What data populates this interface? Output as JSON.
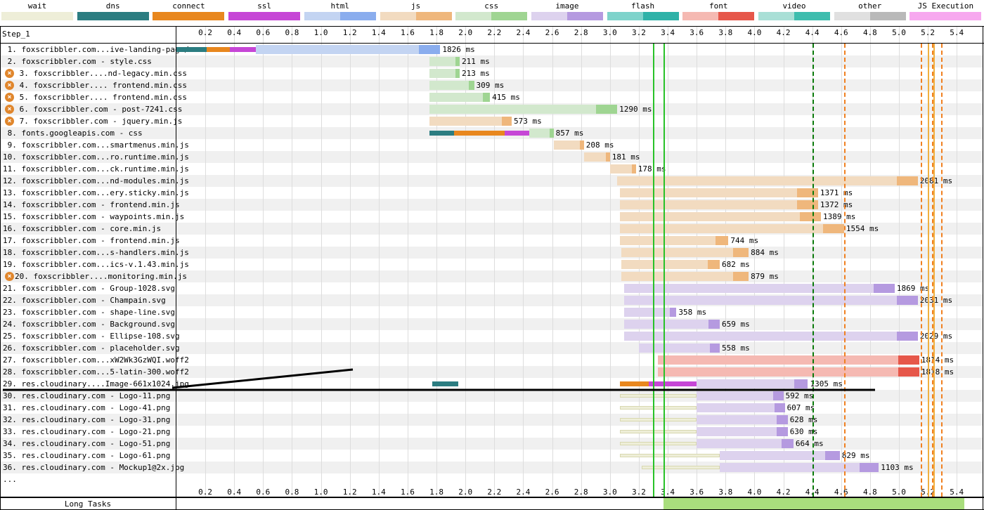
{
  "legend": [
    {
      "label": "wait",
      "c1": "#eeeed8",
      "c2": "#eeeed8"
    },
    {
      "label": "dns",
      "c1": "#2c7d81",
      "c2": "#2c7d81"
    },
    {
      "label": "connect",
      "c1": "#e8871e",
      "c2": "#e8871e"
    },
    {
      "label": "ssl",
      "c1": "#c646d6",
      "c2": "#c646d6"
    },
    {
      "label": "html",
      "c1": "#c3d4f2",
      "c2": "#8aadee"
    },
    {
      "label": "js",
      "c1": "#f2dbc0",
      "c2": "#efb77c"
    },
    {
      "label": "css",
      "c1": "#d2e8cd",
      "c2": "#9fd592"
    },
    {
      "label": "image",
      "c1": "#ddd2ee",
      "c2": "#b59ae0"
    },
    {
      "label": "flash",
      "c1": "#7ed3cb",
      "c2": "#2fb2a8"
    },
    {
      "label": "font",
      "c1": "#f5b9b2",
      "c2": "#e6574a"
    },
    {
      "label": "video",
      "c1": "#a9dfd6",
      "c2": "#3ebdae"
    },
    {
      "label": "other",
      "c1": "#e0e0e0",
      "c2": "#b9b9b9"
    },
    {
      "label": "JS Execution",
      "c1": "#f7a8ef",
      "c2": "#f7a8ef"
    }
  ],
  "step_label": "Step_1",
  "long_tasks_label": "Long Tasks",
  "more_label": "...",
  "ticks": [
    "0.2",
    "0.4",
    "0.6",
    "0.8",
    "1.0",
    "1.2",
    "1.4",
    "1.6",
    "1.8",
    "2.0",
    "2.2",
    "2.4",
    "2.6",
    "2.8",
    "3.0",
    "3.2",
    "3.4",
    "3.6",
    "3.8",
    "4.0",
    "4.2",
    "4.4",
    "4.6",
    "4.8",
    "5.0",
    "5.2",
    "5.4"
  ],
  "rows": [
    {
      "label": " 1. foxscribbler.com...ive-landing-page/",
      "err": false,
      "type": "html",
      "start": 0.0,
      "end": 1.826,
      "dns": [
        0.0,
        0.21
      ],
      "connect": [
        0.21,
        0.37
      ],
      "ssl": [
        0.37,
        0.55
      ],
      "dur": "1826 ms"
    },
    {
      "label": " 2. foxscribbler.com - style.css",
      "err": false,
      "type": "css",
      "start": 1.75,
      "end": 1.96,
      "dur": "211 ms"
    },
    {
      "label": " 3. foxscribbler....nd-legacy.min.css",
      "err": true,
      "type": "css",
      "start": 1.75,
      "end": 1.96,
      "dur": "213 ms"
    },
    {
      "label": " 4. foxscribbler.... frontend.min.css",
      "err": true,
      "type": "css",
      "start": 1.75,
      "end": 2.06,
      "dur": "309 ms"
    },
    {
      "label": " 5. foxscribbler.... frontend.min.css",
      "err": true,
      "type": "css",
      "start": 1.75,
      "end": 2.17,
      "dur": "415 ms"
    },
    {
      "label": " 6. foxscribbler.com - post-7241.css",
      "err": true,
      "type": "css",
      "start": 1.75,
      "end": 3.05,
      "dur": "1290 ms"
    },
    {
      "label": " 7. foxscribbler.com - jquery.min.js",
      "err": true,
      "type": "js",
      "start": 1.75,
      "end": 2.32,
      "dur": "573 ms"
    },
    {
      "label": " 8. fonts.googleapis.com - css",
      "err": false,
      "type": "css",
      "start": 1.75,
      "end": 2.61,
      "dns": [
        1.75,
        1.92
      ],
      "connect": [
        1.92,
        2.27
      ],
      "ssl": [
        2.27,
        2.44
      ],
      "dur": "857 ms"
    },
    {
      "label": " 9. foxscribbler.com...smartmenus.min.js",
      "err": false,
      "type": "js",
      "start": 2.61,
      "end": 2.82,
      "dur": "208 ms"
    },
    {
      "label": "10. foxscribbler.com...ro.runtime.min.js",
      "err": false,
      "type": "js",
      "start": 2.82,
      "end": 3.0,
      "dur": "181 ms"
    },
    {
      "label": "11. foxscribbler.com...ck.runtime.min.js",
      "err": false,
      "type": "js",
      "start": 3.0,
      "end": 3.18,
      "dur": "178 ms"
    },
    {
      "label": "12. foxscribbler.com...nd-modules.min.js",
      "err": false,
      "type": "js",
      "start": 3.05,
      "end": 5.13,
      "dur": "2081 ms"
    },
    {
      "label": "13. foxscribbler.com...ery.sticky.min.js",
      "err": false,
      "type": "js",
      "start": 3.07,
      "end": 4.44,
      "dur": "1371 ms"
    },
    {
      "label": "14. foxscribbler.com - frontend.min.js",
      "err": false,
      "type": "js",
      "start": 3.07,
      "end": 4.44,
      "dur": "1372 ms"
    },
    {
      "label": "15. foxscribbler.com - waypoints.min.js",
      "err": false,
      "type": "js",
      "start": 3.07,
      "end": 4.46,
      "dur": "1389 ms"
    },
    {
      "label": "16. foxscribbler.com - core.min.js",
      "err": false,
      "type": "js",
      "start": 3.07,
      "end": 4.62,
      "dur": "1554 ms"
    },
    {
      "label": "17. foxscribbler.com - frontend.min.js",
      "err": false,
      "type": "js",
      "start": 3.07,
      "end": 3.82,
      "dur": "744 ms"
    },
    {
      "label": "18. foxscribbler.com...s-handlers.min.js",
      "err": false,
      "type": "js",
      "start": 3.08,
      "end": 3.96,
      "dur": "884 ms"
    },
    {
      "label": "19. foxscribbler.com...ics-v.1.43.min.js",
      "err": false,
      "type": "js",
      "start": 3.08,
      "end": 3.76,
      "dur": "682 ms"
    },
    {
      "label": "20. foxscribbler....monitoring.min.js",
      "err": true,
      "type": "js",
      "start": 3.08,
      "end": 3.96,
      "dur": "879 ms"
    },
    {
      "label": "21. foxscribbler.com - Group-1028.svg",
      "err": false,
      "type": "image",
      "start": 3.1,
      "end": 4.97,
      "dur": "1869 ms"
    },
    {
      "label": "22. foxscribbler.com - Champain.svg",
      "err": false,
      "type": "image",
      "start": 3.1,
      "end": 5.13,
      "dur": "2031 ms"
    },
    {
      "label": "23. foxscribbler.com - shape-line.svg",
      "err": false,
      "type": "image",
      "start": 3.1,
      "end": 3.46,
      "dur": "358 ms"
    },
    {
      "label": "24. foxscribbler.com - Background.svg",
      "err": false,
      "type": "image",
      "start": 3.1,
      "end": 3.76,
      "dur": "659 ms"
    },
    {
      "label": "25. foxscribbler.com - Ellipse-108.svg",
      "err": false,
      "type": "image",
      "start": 3.1,
      "end": 5.13,
      "dur": "2029 ms"
    },
    {
      "label": "26. foxscribbler.com - placeholder.svg",
      "err": false,
      "type": "image",
      "start": 3.2,
      "end": 3.76,
      "dur": "558 ms"
    },
    {
      "label": "27. foxscribbler.com...xW2Wk3GzWQI.woff2",
      "err": false,
      "type": "font",
      "start": 3.33,
      "end": 5.14,
      "dur": "1814 ms"
    },
    {
      "label": "28. foxscribbler.com...5-latin-300.woff2",
      "err": false,
      "type": "font",
      "start": 3.33,
      "end": 5.14,
      "dur": "1818 ms"
    },
    {
      "label": "29. res.cloudinary....Image-661x1024.jpg",
      "err": false,
      "type": "image",
      "start": 3.07,
      "end": 4.37,
      "dns": [
        1.77,
        1.95
      ],
      "connect": [
        3.07,
        3.27
      ],
      "ssl": [
        3.27,
        3.6
      ],
      "dur": "1305 ms"
    },
    {
      "label": "30. res.cloudinary.com - Logo-11.png",
      "err": false,
      "type": "image",
      "start": 3.6,
      "end": 4.2,
      "wait": [
        3.07,
        3.6
      ],
      "dur": "592 ms"
    },
    {
      "label": "31. res.cloudinary.com - Logo-41.png",
      "err": false,
      "type": "image",
      "start": 3.6,
      "end": 4.21,
      "wait": [
        3.07,
        3.6
      ],
      "dur": "607 ms"
    },
    {
      "label": "32. res.cloudinary.com - Logo-31.png",
      "err": false,
      "type": "image",
      "start": 3.6,
      "end": 4.23,
      "wait": [
        3.07,
        3.6
      ],
      "dur": "628 ms"
    },
    {
      "label": "33. res.cloudinary.com - Logo-21.png",
      "err": false,
      "type": "image",
      "start": 3.6,
      "end": 4.23,
      "wait": [
        3.07,
        3.6
      ],
      "dur": "630 ms"
    },
    {
      "label": "34. res.cloudinary.com - Logo-51.png",
      "err": false,
      "type": "image",
      "start": 3.6,
      "end": 4.27,
      "wait": [
        3.07,
        3.6
      ],
      "dur": "664 ms"
    },
    {
      "label": "35. res.cloudinary.com - Logo-61.png",
      "err": false,
      "type": "image",
      "start": 3.76,
      "end": 4.59,
      "wait": [
        3.07,
        3.76
      ],
      "dur": "829 ms"
    },
    {
      "label": "36. res.cloudinary.com - Mockup1@2x.jpg",
      "err": false,
      "type": "image",
      "start": 3.76,
      "end": 4.86,
      "wait": [
        3.22,
        3.76
      ],
      "dur": "1103 ms"
    }
  ],
  "markers": {
    "green_lines": [
      3.3,
      3.37
    ],
    "dark_green_dashed": [
      4.4
    ],
    "orange_dashed": [
      4.62,
      5.15,
      5.23,
      5.29
    ],
    "orange_solid": [
      5.2,
      5.24
    ]
  },
  "long_tasks": {
    "start": 3.37,
    "end": 5.45,
    "color": "#a9de7d"
  }
}
